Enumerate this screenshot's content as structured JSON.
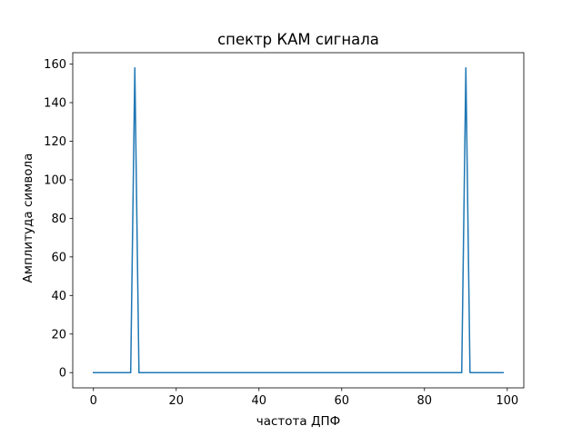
{
  "chart_data": {
    "type": "line",
    "title": "спектр КАМ сигнала",
    "xlabel": "частота ДПФ",
    "ylabel": "Амплитуда символа",
    "xlim": [
      -5,
      104
    ],
    "ylim": [
      -7.9,
      165.9
    ],
    "xticks": [
      0,
      20,
      40,
      60,
      80,
      100
    ],
    "yticks": [
      0,
      20,
      40,
      60,
      80,
      100,
      120,
      140,
      160
    ],
    "grid": false,
    "line_color": "#1f77b4",
    "series": [
      {
        "x": [
          0,
          1,
          2,
          3,
          4,
          5,
          6,
          7,
          8,
          9,
          10,
          11,
          12,
          13,
          14,
          15,
          16,
          17,
          18,
          19,
          20,
          21,
          22,
          23,
          24,
          25,
          26,
          27,
          28,
          29,
          30,
          31,
          32,
          33,
          34,
          35,
          36,
          37,
          38,
          39,
          40,
          41,
          42,
          43,
          44,
          45,
          46,
          47,
          48,
          49,
          50,
          51,
          52,
          53,
          54,
          55,
          56,
          57,
          58,
          59,
          60,
          61,
          62,
          63,
          64,
          65,
          66,
          67,
          68,
          69,
          70,
          71,
          72,
          73,
          74,
          75,
          76,
          77,
          78,
          79,
          80,
          81,
          82,
          83,
          84,
          85,
          86,
          87,
          88,
          89,
          90,
          91,
          92,
          93,
          94,
          95,
          96,
          97,
          98,
          99
        ],
        "y": [
          0,
          0,
          0,
          0,
          0,
          0,
          0,
          0,
          0,
          0,
          158,
          0,
          0,
          0,
          0,
          0,
          0,
          0,
          0,
          0,
          0,
          0,
          0,
          0,
          0,
          0,
          0,
          0,
          0,
          0,
          0,
          0,
          0,
          0,
          0,
          0,
          0,
          0,
          0,
          0,
          0,
          0,
          0,
          0,
          0,
          0,
          0,
          0,
          0,
          0,
          0,
          0,
          0,
          0,
          0,
          0,
          0,
          0,
          0,
          0,
          0,
          0,
          0,
          0,
          0,
          0,
          0,
          0,
          0,
          0,
          0,
          0,
          0,
          0,
          0,
          0,
          0,
          0,
          0,
          0,
          0,
          0,
          0,
          0,
          0,
          0,
          0,
          0,
          0,
          0,
          158,
          0,
          0,
          0,
          0,
          0,
          0,
          0,
          0,
          0
        ]
      }
    ]
  }
}
